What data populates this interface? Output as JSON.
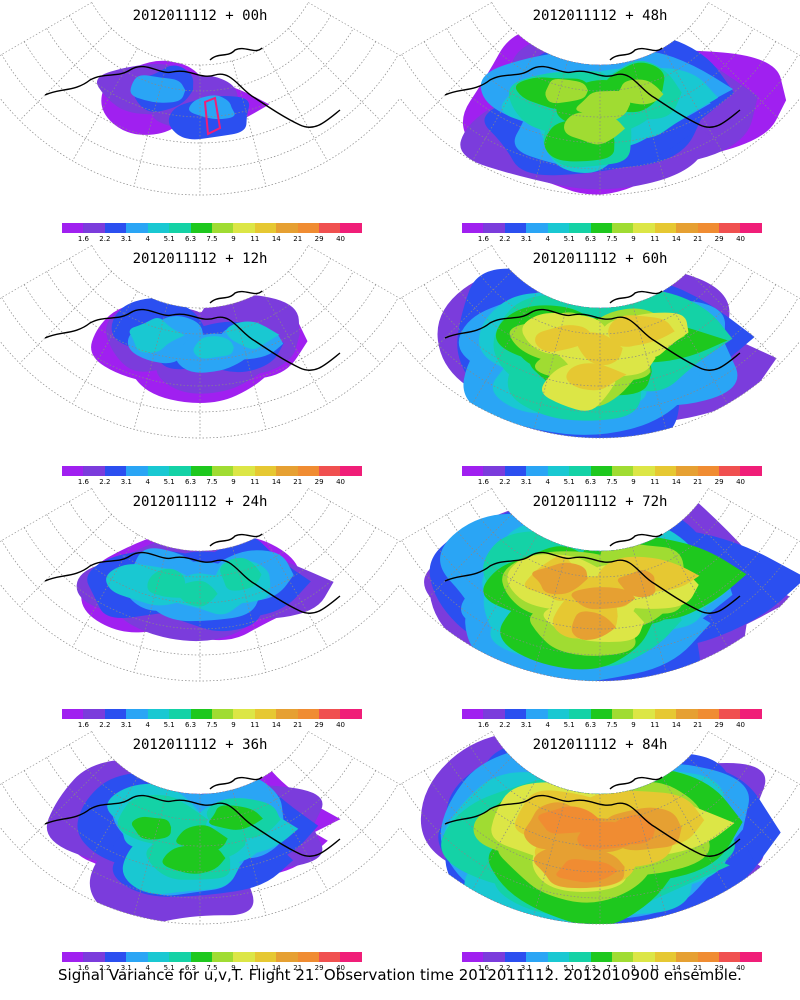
{
  "colorbar": {
    "colors": [
      "#a020f0",
      "#7b3cdc",
      "#2b4ff0",
      "#2aa5f5",
      "#19c8d2",
      "#14d2a6",
      "#1ec81e",
      "#a0dc32",
      "#dce646",
      "#e6c832",
      "#e6a032",
      "#f08c32",
      "#f05050",
      "#f01e78"
    ],
    "tick_labels": [
      "1.6",
      "2.2",
      "3.1",
      "4",
      "5.1",
      "6.3",
      "7.5",
      "9",
      "11",
      "14",
      "21",
      "29",
      "40"
    ]
  },
  "panels": [
    {
      "title": "2012011112 + 00h",
      "intensity": 1,
      "box": true
    },
    {
      "title": "2012011112 + 48h",
      "intensity": 5,
      "box": false
    },
    {
      "title": "2012011112 + 12h",
      "intensity": 2,
      "box": false
    },
    {
      "title": "2012011112 + 60h",
      "intensity": 6,
      "box": false
    },
    {
      "title": "2012011112 + 24h",
      "intensity": 3,
      "box": false
    },
    {
      "title": "2012011112 + 72h",
      "intensity": 7,
      "box": false
    },
    {
      "title": "2012011112 + 36h",
      "intensity": 4,
      "box": false
    },
    {
      "title": "2012011112 + 84h",
      "intensity": 8,
      "box": false
    }
  ],
  "caption": "Signal Variance for u,v,T. Flight 21. Observation time 2012011112. 2012010900 ensemble."
}
